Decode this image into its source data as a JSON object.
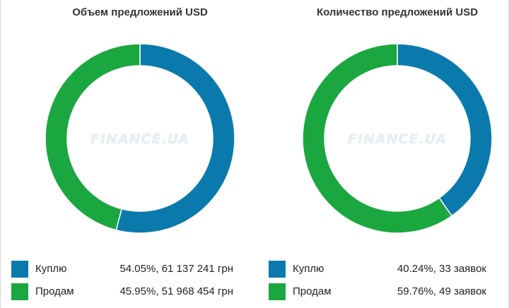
{
  "colors": {
    "buy": "#0a7aad",
    "sell": "#1ba73f"
  },
  "watermark": "FINANCE.UA",
  "chart_data": [
    {
      "type": "pie",
      "title": "Объем предложений USD",
      "categories": [
        "Куплю",
        "Продам"
      ],
      "values": [
        54.05,
        45.95
      ],
      "details": [
        "54.05%, 61 137 241 грн",
        "45.95%, 51 968 454 грн"
      ],
      "legend": "bottom"
    },
    {
      "type": "pie",
      "title": "Количество предложений USD",
      "categories": [
        "Куплю",
        "Продам"
      ],
      "values": [
        40.24,
        59.76
      ],
      "details": [
        "40.24%, 33 заявок",
        "59.76%, 49 заявок"
      ],
      "legend": "bottom"
    }
  ]
}
